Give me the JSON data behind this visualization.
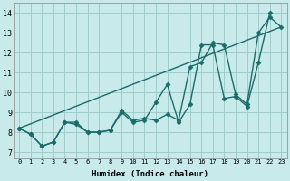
{
  "xlabel": "Humidex (Indice chaleur)",
  "x_ticks": [
    0,
    1,
    2,
    3,
    4,
    5,
    6,
    7,
    8,
    9,
    10,
    11,
    12,
    13,
    14,
    15,
    16,
    17,
    18,
    19,
    20,
    21,
    22,
    23
  ],
  "y_ticks": [
    7,
    8,
    9,
    10,
    11,
    12,
    13,
    14
  ],
  "ylim": [
    6.7,
    14.5
  ],
  "xlim": [
    -0.5,
    23.5
  ],
  "background_color": "#c8eaea",
  "grid_color": "#a0cccc",
  "line_color": "#1a6b6b",
  "series": [
    {
      "x": [
        0,
        1,
        2,
        3,
        4,
        5,
        6,
        7,
        8,
        9,
        10,
        11,
        12,
        13,
        14,
        15,
        16,
        17,
        18,
        19,
        20,
        21,
        22,
        23
      ],
      "y": [
        8.2,
        7.9,
        7.3,
        7.5,
        8.5,
        8.5,
        8.0,
        8.0,
        8.1,
        9.1,
        8.6,
        8.7,
        8.6,
        8.9,
        8.6,
        11.3,
        11.5,
        12.5,
        12.4,
        9.9,
        9.4,
        13.0,
        13.8,
        13.3
      ],
      "marker": "D",
      "markersize": 2.5,
      "linewidth": 1.0
    },
    {
      "x": [
        0,
        1,
        2,
        3,
        4,
        5,
        6,
        7,
        8,
        9,
        10,
        11,
        12,
        13,
        14,
        15,
        16,
        17,
        18,
        19,
        20,
        21,
        22
      ],
      "y": [
        8.2,
        7.9,
        7.3,
        7.5,
        8.5,
        8.4,
        8.0,
        8.0,
        8.1,
        9.0,
        8.5,
        8.6,
        9.5,
        10.4,
        8.5,
        9.4,
        12.4,
        12.4,
        9.7,
        9.8,
        9.3,
        11.5,
        14.0
      ],
      "marker": "D",
      "markersize": 2.5,
      "linewidth": 1.0
    },
    {
      "x": [
        0,
        23
      ],
      "y": [
        8.2,
        13.3
      ],
      "marker": null,
      "markersize": 0,
      "linewidth": 1.0
    }
  ]
}
